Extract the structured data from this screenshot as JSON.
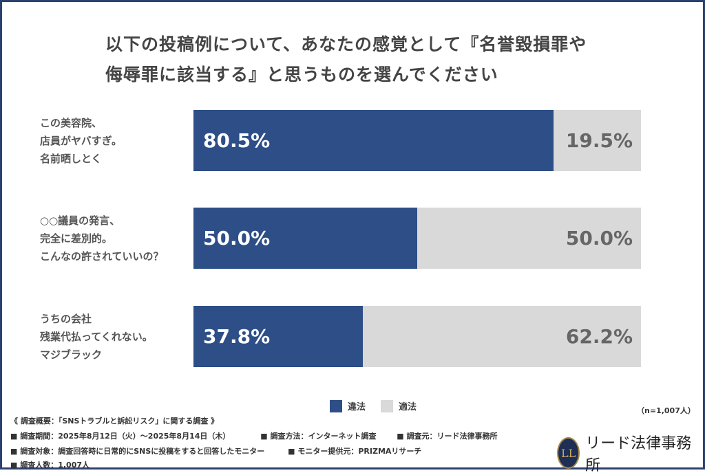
{
  "title_lines": [
    "以下の投稿例について、あなたの感覚として『名誉毀損罪や",
    "侮辱罪に該当する』と思うものを選んでください"
  ],
  "colors": {
    "illegal": "#2d4e87",
    "legal": "#d9d9d9",
    "border": "#2b4170"
  },
  "chart_data": {
    "type": "bar",
    "stacked": true,
    "orientation": "horizontal",
    "title": "以下の投稿例について、あなたの感覚として『名誉毀損罪や侮辱罪に該当する』と思うものを選んでください",
    "categories": [
      [
        "この美容院、",
        "店員がヤバすぎ。",
        "名前晒しとく"
      ],
      [
        "○○議員の発言、",
        "完全に差別的。",
        "こんなの許されていいの？"
      ],
      [
        "うちの会社",
        "残業代払ってくれない。",
        "マジブラック"
      ]
    ],
    "series": [
      {
        "name": "違法",
        "values": [
          80.5,
          50.0,
          37.8
        ],
        "labels": [
          "80.5%",
          "50.0%",
          "37.8%"
        ]
      },
      {
        "name": "適法",
        "values": [
          19.5,
          50.0,
          62.2
        ],
        "labels": [
          "19.5%",
          "50.0%",
          "62.2%"
        ]
      }
    ],
    "xlim": [
      0,
      100
    ],
    "legend_position": "bottom",
    "grid": false
  },
  "legend": [
    "違法",
    "適法"
  ],
  "sample_size": "（n=1,007人）",
  "footer": {
    "heading": "《 調査概要：「SNSトラブルと訴訟リスク」に関する調査 》",
    "line1": [
      "■ 調査期間：2025年8月12日（火）～2025年8月14日（木）",
      "■ 調査方法：インターネット調査",
      "■ 調査元：リード法律事務所"
    ],
    "line2": [
      "■ 調査対象：調査回答時に日常的にSNSに投稿をすると回答したモニター",
      "■ モニター提供元：PRIZMAリサーチ"
    ],
    "line3": "■ 調査人数：1,007人"
  },
  "logo": {
    "mark": "LL",
    "text": "リード法律事務所"
  }
}
